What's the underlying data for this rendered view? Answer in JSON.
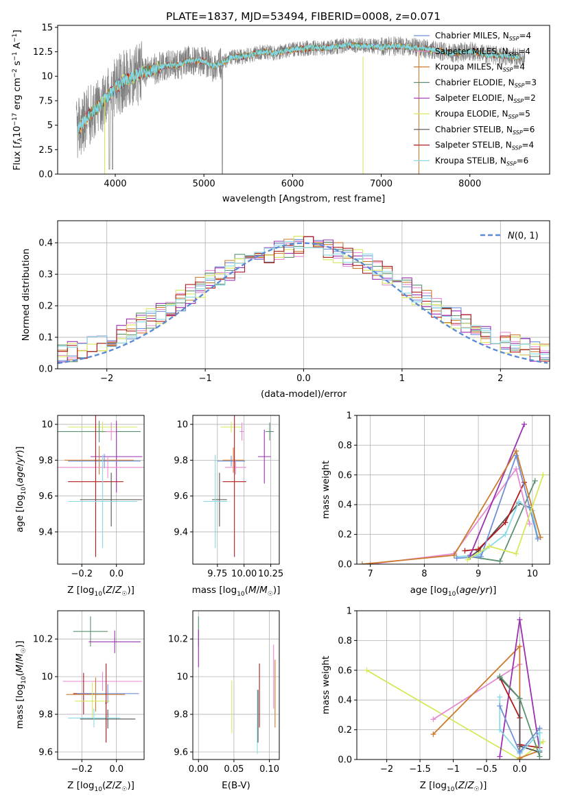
{
  "figure_title": "PLATE=1837, MJD=53494, FIBERID=0008, z=0.071",
  "colors": {
    "chabrier_miles": "#6f8fd6",
    "salpeter_miles": "#e58ad0",
    "kroupa_miles": "#cc7a2c",
    "chabrier_elodie": "#5a9170",
    "salpeter_elodie": "#9a2fb0",
    "kroupa_elodie": "#d6e85a",
    "chabrier_stelib": "#505050",
    "salpeter_stelib": "#b01a1a",
    "kroupa_stelib": "#86d9e6",
    "data_gray": "#808080",
    "normal_curve": "#5b8bd6"
  },
  "chart_data": [
    {
      "id": "spectrum",
      "type": "line",
      "title": "PLATE=1837, MJD=53494, FIBERID=0008, z=0.071",
      "xlabel": "wavelength [Angstrom, rest frame]",
      "ylabel": "Flux [f_λ 10^-17 erg cm^-2 s^-1 A^-1]",
      "xlim": [
        3350,
        8900
      ],
      "ylim": [
        0,
        15.2
      ],
      "xticks": [
        4000,
        5000,
        6000,
        7000,
        8000
      ],
      "yticks": [
        0.0,
        2.5,
        5.0,
        7.5,
        10.0,
        12.5,
        15.0
      ],
      "legend_position": "upper right",
      "legend": [
        "Chabrier MILES, N_SSP=4",
        "Salpeter MILES, N_SSP=4",
        "Kroupa MILES, N_SSP=4",
        "Chabrier ELODIE, N_SSP=3",
        "Salpeter ELODIE, N_SSP=2",
        "Kroupa ELODIE, N_SSP=5",
        "Chabrier STELIB, N_SSP=6",
        "Salpeter STELIB, N_SSP=4",
        "Kroupa STELIB, N_SSP=6"
      ],
      "continuum": {
        "x": [
          3580,
          3700,
          3800,
          3900,
          4000,
          4100,
          4200,
          4300,
          4400,
          4500,
          4600,
          4700,
          4800,
          4900,
          5000,
          5100,
          5200,
          5300,
          5400,
          5500,
          5600,
          5700,
          5800,
          5900,
          6000,
          6200,
          6400,
          6600,
          6800,
          7000,
          7200,
          7400,
          7600,
          7800,
          8000,
          8200,
          8400,
          8600
        ],
        "y": [
          4.5,
          6.0,
          6.8,
          7.8,
          8.8,
          9.6,
          9.9,
          10.4,
          10.6,
          10.9,
          11.1,
          11.1,
          11.5,
          11.6,
          11.6,
          11.0,
          11.3,
          11.9,
          12.0,
          12.1,
          12.4,
          12.5,
          12.3,
          12.6,
          12.7,
          12.9,
          12.9,
          13.2,
          13.1,
          13.0,
          13.1,
          12.9,
          12.7,
          12.3,
          12.6,
          12.2,
          12.1,
          11.9
        ]
      }
    },
    {
      "id": "residuals",
      "type": "step",
      "xlabel": "(data-model)/error",
      "ylabel": "Normed distribution",
      "xlim": [
        -2.5,
        2.5
      ],
      "ylim": [
        0,
        0.47
      ],
      "xticks": [
        -2,
        -1,
        0,
        1,
        2
      ],
      "yticks": [
        0.0,
        0.1,
        0.2,
        0.3,
        0.4
      ],
      "legend": [
        "N(0,1)"
      ],
      "legend_position": "upper right",
      "bin_width": 0.1
    },
    {
      "id": "age-vs-Z",
      "type": "errorbar",
      "xlabel": "Z [log10(Z/Z☉)]",
      "ylabel": "age [log10(age/yr)]",
      "xlim": [
        -0.34,
        0.16
      ],
      "ylim": [
        9.22,
        10.05
      ],
      "xticks": [
        -0.2,
        0.0
      ],
      "yticks": [
        9.4,
        9.6,
        9.8,
        10.0
      ],
      "points": [
        {
          "c": "kroupa_elodie",
          "x": -0.08,
          "y": 9.985,
          "xe": 0.2,
          "ye": 0.03
        },
        {
          "c": "chabrier_elodie",
          "x": -0.1,
          "y": 9.96,
          "xe": 0.24,
          "ye": 0.06
        },
        {
          "c": "salpeter_miles",
          "x": -0.03,
          "y": 9.96,
          "xe": 0.03,
          "ye": 0.05
        },
        {
          "c": "salpeter_elodie",
          "x": 0.0,
          "y": 9.82,
          "xe": 0.15,
          "ye": 0.2
        },
        {
          "c": "kroupa_miles",
          "x": -0.1,
          "y": 9.8,
          "xe": 0.2,
          "ye": 0.08
        },
        {
          "c": "chabrier_miles",
          "x": -0.07,
          "y": 9.795,
          "xe": 0.21,
          "ye": 0.04
        },
        {
          "c": "salpeter_miles",
          "x": -0.05,
          "y": 9.76,
          "xe": 0.3,
          "ye": 0.06
        },
        {
          "c": "salpeter_stelib",
          "x": -0.12,
          "y": 9.68,
          "xe": 0.16,
          "ye": 0.42
        },
        {
          "c": "chabrier_stelib",
          "x": -0.03,
          "y": 9.58,
          "xe": 0.18,
          "ye": 0.15
        },
        {
          "c": "kroupa_stelib",
          "x": -0.08,
          "y": 9.57,
          "xe": 0.2,
          "ye": 0.26
        }
      ]
    },
    {
      "id": "age-vs-mass",
      "type": "errorbar",
      "xlabel": "mass [log10(M/M☉)]",
      "ylabel": "",
      "xlim": [
        9.52,
        10.33
      ],
      "ylim": [
        9.22,
        10.05
      ],
      "xticks": [
        9.75,
        10.0,
        10.25
      ],
      "xtick_labels": [
        "9.75",
        "10.00",
        "10.25"
      ],
      "yticks": [
        9.4,
        9.6,
        9.8,
        10.0
      ],
      "points": [
        {
          "c": "kroupa_elodie",
          "x": 9.88,
          "y": 9.985,
          "xe": 0.1,
          "ye": 0.03
        },
        {
          "c": "salpeter_miles",
          "x": 9.98,
          "y": 9.96,
          "xe": 0.02,
          "ye": 0.05
        },
        {
          "c": "chabrier_elodie",
          "x": 10.24,
          "y": 9.96,
          "xe": 0.04,
          "ye": 0.05
        },
        {
          "c": "salpeter_elodie",
          "x": 10.19,
          "y": 9.82,
          "xe": 0.06,
          "ye": 0.15
        },
        {
          "c": "kroupa_miles",
          "x": 9.9,
          "y": 9.8,
          "xe": 0.1,
          "ye": 0.07
        },
        {
          "c": "chabrier_miles",
          "x": 9.88,
          "y": 9.795,
          "xe": 0.13,
          "ye": 0.03
        },
        {
          "c": "salpeter_miles",
          "x": 9.92,
          "y": 9.76,
          "xe": 0.1,
          "ye": 0.04
        },
        {
          "c": "salpeter_stelib",
          "x": 9.91,
          "y": 9.68,
          "xe": 0.11,
          "ye": 0.42
        },
        {
          "c": "chabrier_stelib",
          "x": 9.77,
          "y": 9.58,
          "xe": 0.07,
          "ye": 0.15
        },
        {
          "c": "kroupa_stelib",
          "x": 9.73,
          "y": 9.57,
          "xe": 0.11,
          "ye": 0.26
        }
      ]
    },
    {
      "id": "massweight-vs-age",
      "type": "line",
      "xlabel": "age  [log10(age/yr)]",
      "ylabel": "mass weight",
      "xlim": [
        6.75,
        10.32
      ],
      "ylim": [
        0,
        1.0
      ],
      "xticks": [
        7,
        8,
        9,
        10
      ],
      "yticks": [
        0.0,
        0.2,
        0.4,
        0.6,
        0.8,
        1.0
      ],
      "series": [
        {
          "c": "chabrier_elodie",
          "x": [
            8.85,
            9.4,
            10.05
          ],
          "y": [
            0.05,
            0.02,
            0.56
          ]
        },
        {
          "c": "chabrier_stelib",
          "x": [
            8.85,
            9.0,
            9.75,
            9.95
          ],
          "y": [
            0.05,
            0.09,
            0.41,
            0.38
          ]
        },
        {
          "c": "kroupa_stelib",
          "x": [
            8.6,
            9.0,
            9.5,
            9.75,
            10.0,
            10.1
          ],
          "y": [
            0.05,
            0.06,
            0.2,
            0.42,
            0.36,
            0.18
          ]
        },
        {
          "c": "salpeter_stelib",
          "x": [
            8.75,
            9.0,
            9.5,
            9.85
          ],
          "y": [
            0.09,
            0.1,
            0.28,
            0.55
          ]
        },
        {
          "c": "salpeter_miles",
          "x": [
            7.0,
            8.55,
            9.7,
            9.95
          ],
          "y": [
            0.0,
            0.07,
            0.64,
            0.27
          ]
        },
        {
          "c": "salpeter_elodie",
          "x": [
            8.85,
            9.85
          ],
          "y": [
            0.06,
            0.94
          ]
        },
        {
          "c": "kroupa_miles",
          "x": [
            6.85,
            8.55,
            9.7,
            10.15
          ],
          "y": [
            0.0,
            0.06,
            0.76,
            0.18
          ]
        },
        {
          "c": "chabrier_miles",
          "x": [
            8.6,
            9.05,
            9.7,
            10.1
          ],
          "y": [
            0.04,
            0.05,
            0.73,
            0.17
          ]
        },
        {
          "c": "kroupa_elodie",
          "x": [
            8.8,
            9.2,
            9.7,
            10.2
          ],
          "y": [
            0.03,
            0.12,
            0.07,
            0.6
          ]
        }
      ]
    },
    {
      "id": "mass-vs-Z",
      "type": "errorbar",
      "xlabel": "Z [log10(Z/Z☉)]",
      "ylabel": "mass [log10(M/M☉)]",
      "xlim": [
        -0.34,
        0.16
      ],
      "ylim": [
        9.56,
        10.35
      ],
      "xticks": [
        -0.2,
        0.0
      ],
      "yticks": [
        9.6,
        9.8,
        10.0,
        10.2
      ],
      "points": [
        {
          "c": "chabrier_elodie",
          "x": -0.15,
          "y": 10.24,
          "xe": 0.1,
          "ye": 0.08
        },
        {
          "c": "salpeter_elodie",
          "x": -0.01,
          "y": 10.185,
          "xe": 0.15,
          "ye": 0.06
        },
        {
          "c": "salpeter_miles",
          "x": -0.08,
          "y": 9.975,
          "xe": 0.23,
          "ye": 0.05
        },
        {
          "c": "salpeter_stelib",
          "x": -0.19,
          "y": 9.91,
          "xe": 0.06,
          "ye": 0.11
        },
        {
          "c": "chabrier_miles",
          "x": -0.05,
          "y": 9.91,
          "xe": 0.18,
          "ye": 0.05
        },
        {
          "c": "kroupa_miles",
          "x": -0.12,
          "y": 9.905,
          "xe": 0.17,
          "ye": 0.09
        },
        {
          "c": "kroupa_elodie",
          "x": -0.14,
          "y": 9.87,
          "xe": 0.1,
          "ye": 0.1
        },
        {
          "c": "chabrier_stelib",
          "x": -0.05,
          "y": 9.775,
          "xe": 0.16,
          "ye": 0.05
        },
        {
          "c": "kroupa_stelib",
          "x": -0.13,
          "y": 9.78,
          "xe": 0.15,
          "ye": 0.05
        },
        {
          "c": "salpeter_stelib",
          "x": -0.06,
          "y": 9.86,
          "xe": 0.005,
          "ye": 0.21
        }
      ]
    },
    {
      "id": "mass-vs-ebv",
      "type": "errorbar",
      "xlabel": "E(B-V)",
      "ylabel": "",
      "xlim": [
        -0.008,
        0.114
      ],
      "ylim": [
        9.56,
        10.35
      ],
      "xticks": [
        0.0,
        0.05,
        0.1
      ],
      "xtick_labels": [
        "0.00",
        "0.05",
        "0.10"
      ],
      "yticks": [
        9.6,
        9.8,
        10.0,
        10.2
      ],
      "points": [
        {
          "c": "chabrier_elodie",
          "x": 0.0,
          "y": 10.24,
          "xe": 0,
          "ye": 0.08
        },
        {
          "c": "salpeter_elodie",
          "x": 0.0,
          "y": 10.15,
          "xe": 0,
          "ye": 0.1
        },
        {
          "c": "kroupa_elodie",
          "x": 0.047,
          "y": 9.84,
          "xe": 0,
          "ye": 0.14
        },
        {
          "c": "kroupa_stelib",
          "x": 0.083,
          "y": 9.76,
          "xe": 0,
          "ye": 0.17
        },
        {
          "c": "chabrier_stelib",
          "x": 0.084,
          "y": 9.79,
          "xe": 0,
          "ye": 0.14
        },
        {
          "c": "salpeter_stelib",
          "x": 0.086,
          "y": 9.9,
          "xe": 0,
          "ye": 0.17
        },
        {
          "c": "salpeter_miles",
          "x": 0.106,
          "y": 10.0,
          "xe": 0,
          "ye": 0.17
        },
        {
          "c": "kroupa_miles",
          "x": 0.108,
          "y": 9.91,
          "xe": 0,
          "ye": 0.18
        }
      ]
    },
    {
      "id": "massweight-vs-Z",
      "type": "line",
      "xlabel": "Z [log10(Z/Z☉)]",
      "ylabel": "mass weight",
      "xlim": [
        -2.45,
        0.45
      ],
      "ylim": [
        0,
        1.0
      ],
      "xticks": [
        -2.0,
        -1.5,
        -1.0,
        -0.5,
        0.0
      ],
      "yticks": [
        0.0,
        0.2,
        0.4,
        0.6,
        0.8,
        1.0
      ],
      "series": [
        {
          "c": "kroupa_elodie",
          "x": [
            -2.3,
            0.0,
            0.35
          ],
          "y": [
            0.6,
            0.0,
            0.12
          ]
        },
        {
          "c": "salpeter_miles",
          "x": [
            -1.3,
            0.0,
            0.0
          ],
          "y": [
            0.27,
            0.64,
            0.0
          ]
        },
        {
          "c": "kroupa_miles",
          "x": [
            -1.3,
            0.0,
            0.0,
            0.3
          ],
          "y": [
            0.17,
            0.76,
            0.01,
            0.06
          ]
        },
        {
          "c": "salpeter_elodie",
          "x": [
            -0.3,
            0.0,
            0.3
          ],
          "y": [
            0.02,
            0.94,
            0.06
          ]
        },
        {
          "c": "salpeter_stelib",
          "x": [
            -0.3,
            0.0,
            0.0,
            0.3
          ],
          "y": [
            0.55,
            0.28,
            0.1,
            0.08
          ]
        },
        {
          "c": "chabrier_stelib",
          "x": [
            -0.3,
            0.0,
            0.0,
            0.3
          ],
          "y": [
            0.55,
            0.41,
            0.09,
            0.05
          ]
        },
        {
          "c": "chabrier_elodie",
          "x": [
            -0.3,
            0.0,
            0.3
          ],
          "y": [
            0.56,
            0.41,
            0.02
          ]
        },
        {
          "c": "kroupa_stelib",
          "x": [
            -0.3,
            -0.3,
            0.0,
            0.3,
            0.3
          ],
          "y": [
            0.42,
            0.2,
            0.04,
            0.18,
            0.06
          ]
        },
        {
          "c": "chabrier_miles",
          "x": [
            -0.3,
            0.0,
            0.3
          ],
          "y": [
            0.36,
            0.05,
            0.21
          ]
        }
      ]
    }
  ]
}
